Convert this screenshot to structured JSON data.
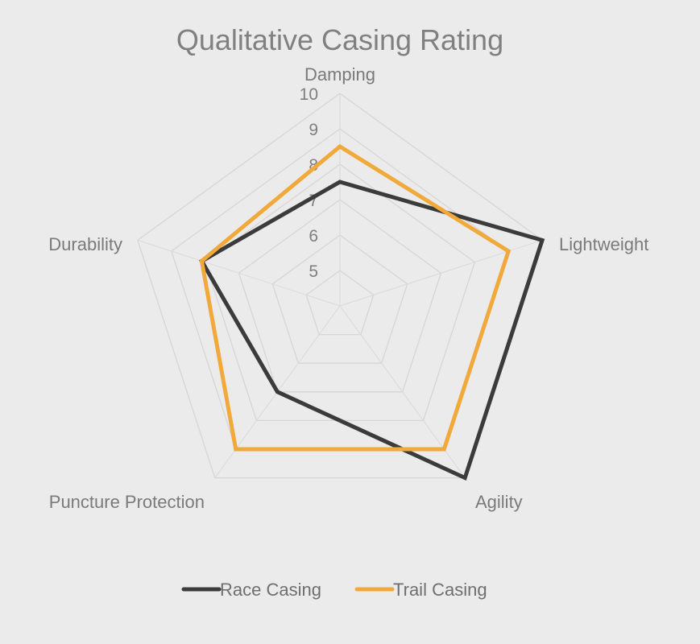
{
  "chart_data": {
    "type": "radar",
    "title": "Qualitative Casing Rating",
    "axes": [
      "Damping",
      "Lightweight",
      "Agility",
      "Puncture Protection",
      "Durability"
    ],
    "rlim": [
      4,
      10
    ],
    "ticks": [
      "5",
      "6",
      "7",
      "8",
      "9",
      "10"
    ],
    "tick_values": [
      5,
      6,
      7,
      8,
      9,
      10
    ],
    "grid": true,
    "legend_position": "bottom",
    "series": [
      {
        "name": "Race Casing",
        "color": "#3b3b3b",
        "values": [
          7.5,
          10,
          10,
          7,
          8.1
        ]
      },
      {
        "name": "Trail Casing",
        "color": "#f0a93a",
        "values": [
          8.5,
          9,
          9,
          9,
          8.1
        ]
      }
    ]
  }
}
